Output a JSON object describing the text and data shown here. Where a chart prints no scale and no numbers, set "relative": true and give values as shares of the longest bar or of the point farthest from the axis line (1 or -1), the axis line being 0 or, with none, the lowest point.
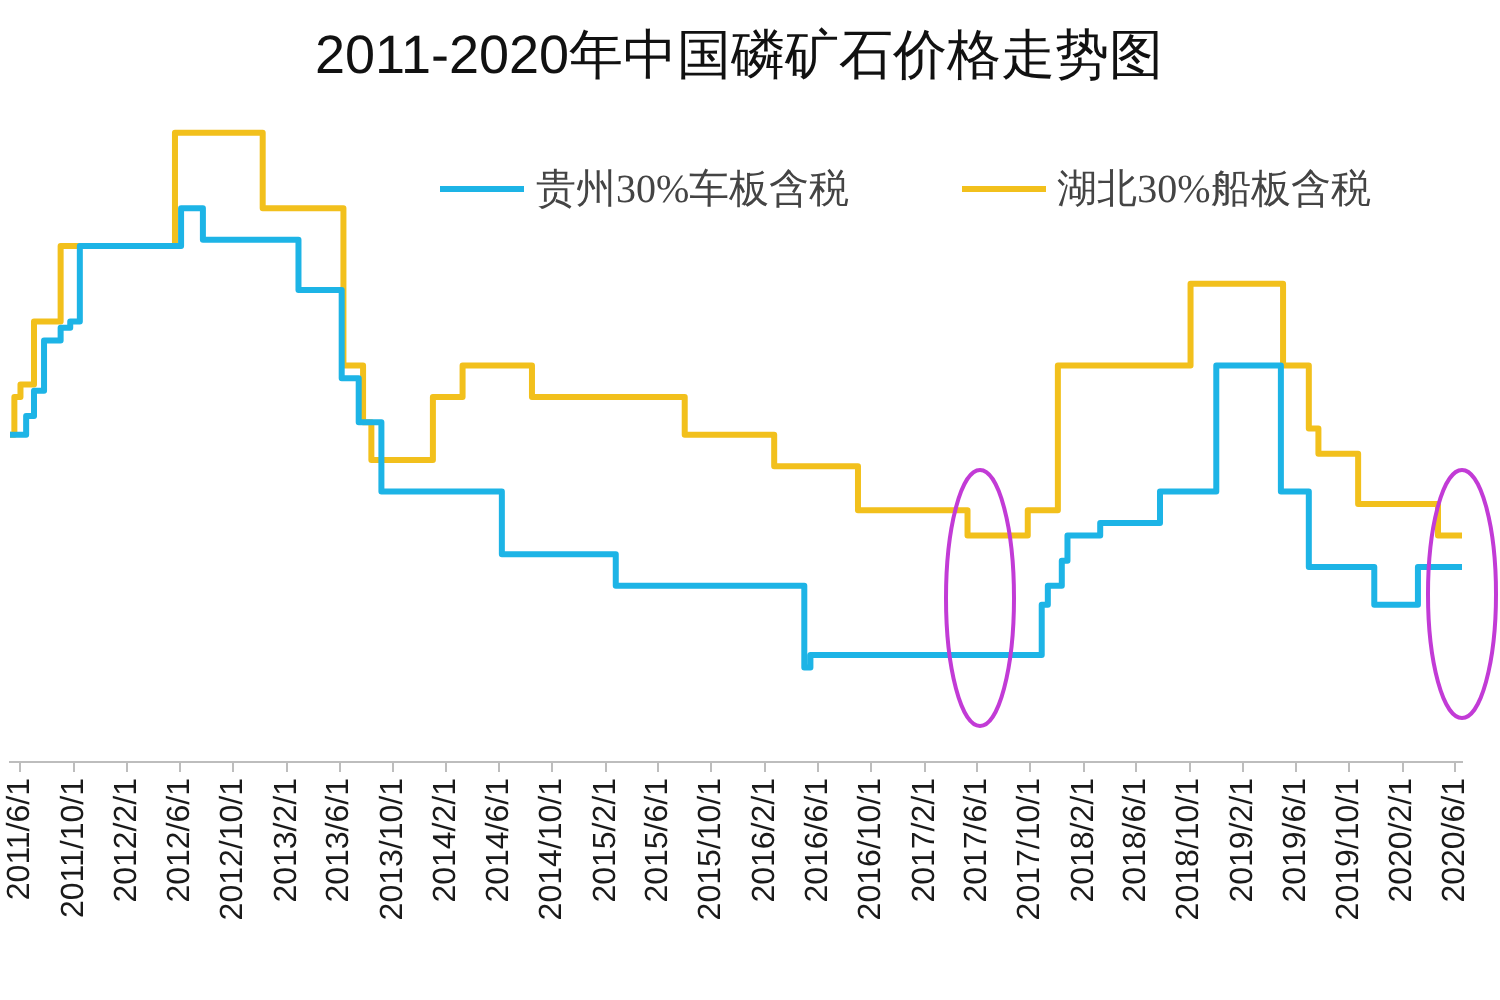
{
  "chart_data": {
    "type": "step",
    "title": "2011-2020年中国磷矿石价格走势图",
    "relative": true,
    "legend": "top",
    "xlim": [
      "2011-05-08",
      "2020-06-16"
    ],
    "xticks": [
      {
        "value": "2011-06-01",
        "label": "2011/6/1"
      },
      {
        "value": "2011-10-01",
        "label": "2011/10/1"
      },
      {
        "value": "2012-02-01",
        "label": "2012/2/1"
      },
      {
        "value": "2012-06-01",
        "label": "2012/6/1"
      },
      {
        "value": "2012-10-01",
        "label": "2012/10/1"
      },
      {
        "value": "2013-02-01",
        "label": "2013/2/1"
      },
      {
        "value": "2013-06-01",
        "label": "2013/6/1"
      },
      {
        "value": "2013-10-01",
        "label": "2013/10/1"
      },
      {
        "value": "2014-02-01",
        "label": "2014/2/1"
      },
      {
        "value": "2014-06-01",
        "label": "2014/6/1"
      },
      {
        "value": "2014-10-01",
        "label": "2014/10/1"
      },
      {
        "value": "2015-02-01",
        "label": "2015/2/1"
      },
      {
        "value": "2015-06-01",
        "label": "2015/6/1"
      },
      {
        "value": "2015-10-01",
        "label": "2015/10/1"
      },
      {
        "value": "2016-02-01",
        "label": "2016/2/1"
      },
      {
        "value": "2016-06-01",
        "label": "2016/6/1"
      },
      {
        "value": "2016-10-01",
        "label": "2016/10/1"
      },
      {
        "value": "2017-02-01",
        "label": "2017/2/1"
      },
      {
        "value": "2017-06-01",
        "label": "2017/6/1"
      },
      {
        "value": "2017-10-01",
        "label": "2017/10/1"
      },
      {
        "value": "2018-02-01",
        "label": "2018/2/1"
      },
      {
        "value": "2018-06-01",
        "label": "2018/6/1"
      },
      {
        "value": "2018-10-01",
        "label": "2018/10/1"
      },
      {
        "value": "2019-02-01",
        "label": "2019/2/1"
      },
      {
        "value": "2019-06-01",
        "label": "2019/6/1"
      },
      {
        "value": "2019-10-01",
        "label": "2019/10/1"
      },
      {
        "value": "2020-02-01",
        "label": "2020/2/1"
      },
      {
        "value": "2020-06-01",
        "label": "2020/6/1"
      }
    ],
    "series": [
      {
        "name": "贵州30%车板含税",
        "color": "#1db4e6",
        "x": [
          "2011-05-08",
          "2011-06-14",
          "2011-07-02",
          "2011-07-25",
          "2011-09-01",
          "2011-09-23",
          "2011-10-15",
          "2012-06-03",
          "2012-07-23",
          "2013-02-27",
          "2013-06-06",
          "2013-07-15",
          "2013-09-05",
          "2014-06-08",
          "2015-02-24",
          "2016-05-01",
          "2016-05-15",
          "2017-10-27",
          "2017-11-10",
          "2017-12-12",
          "2017-12-25",
          "2018-03-10",
          "2018-07-25",
          "2018-12-01",
          "2019-04-28",
          "2019-07-01",
          "2019-11-28",
          "2020-03-07",
          "2020-06-16"
        ],
        "values": [
          0.52,
          0.55,
          0.59,
          0.67,
          0.69,
          0.7,
          0.82,
          0.88,
          0.83,
          0.75,
          0.61,
          0.54,
          0.43,
          0.33,
          0.28,
          0.15,
          0.17,
          0.25,
          0.28,
          0.32,
          0.36,
          0.38,
          0.43,
          0.63,
          0.43,
          0.31,
          0.25,
          0.31,
          0.31
        ]
      },
      {
        "name": "湖北30%船板含税",
        "color": "#f2c01c",
        "x": [
          "2011-05-08",
          "2011-05-18",
          "2011-06-01",
          "2011-07-02",
          "2011-09-01",
          "2012-05-20",
          "2012-12-07",
          "2013-06-10",
          "2013-07-25",
          "2013-08-13",
          "2014-01-01",
          "2014-03-10",
          "2014-08-16",
          "2015-08-01",
          "2016-02-22",
          "2016-09-01",
          "2017-05-10",
          "2017-09-25",
          "2017-12-03",
          "2018-10-03",
          "2019-05-03",
          "2019-07-01",
          "2019-07-23",
          "2019-10-22",
          "2020-04-22",
          "2020-06-16"
        ],
        "values": [
          0.52,
          0.58,
          0.6,
          0.7,
          0.82,
          1.0,
          0.88,
          0.63,
          0.54,
          0.48,
          0.58,
          0.63,
          0.58,
          0.52,
          0.47,
          0.4,
          0.36,
          0.4,
          0.63,
          0.76,
          0.63,
          0.53,
          0.49,
          0.41,
          0.36,
          0.36
        ]
      }
    ]
  }
}
